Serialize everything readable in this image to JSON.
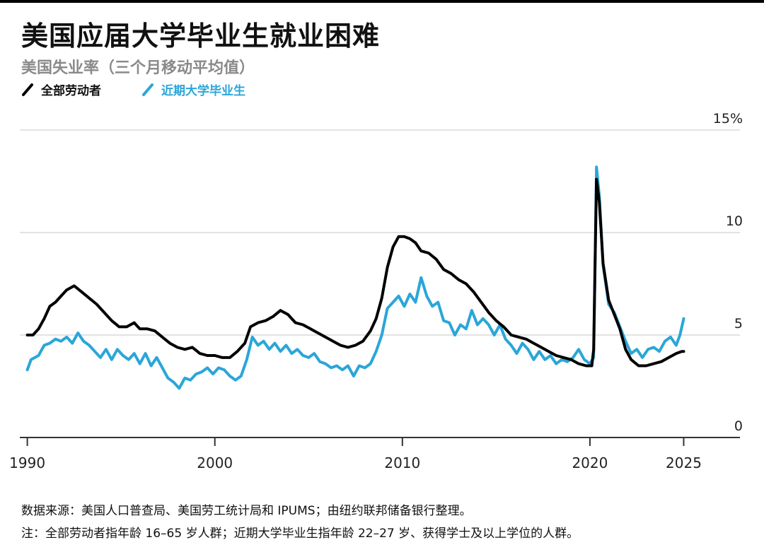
{
  "title": "美国应届大学毕业生就业困难",
  "subtitle": "美国失业率（三个月移动平均值）",
  "legend": {
    "all_workers": "全部劳动者",
    "recent_grads": "近期大学毕业生"
  },
  "footer": {
    "source": "数据来源：美国人口普查局、美国劳工统计局和 IPUMS；由纽约联邦储备银行整理。",
    "note": "注：全部劳动者指年龄 16–65 岁人群；近期大学毕业生指年龄 22–27 岁、获得学士及以上学位的人群。"
  },
  "colors": {
    "all_workers": "#000000",
    "recent_grads": "#2aa6d8",
    "grid": "#d9d9d9",
    "axis": "#333333"
  },
  "chart_data": {
    "type": "line",
    "title": "美国应届大学毕业生就业困难",
    "subtitle": "美国失业率（三个月移动平均值）",
    "xlabel": "",
    "ylabel": "",
    "xlim": [
      1989.6,
      2028.0
    ],
    "ylim": [
      0,
      15
    ],
    "y_ticks": [
      0,
      5,
      10,
      15
    ],
    "y_tick_labels": [
      "0",
      "5",
      "10",
      "15%"
    ],
    "x_ticks": [
      1990,
      2000,
      2010,
      2020,
      2025
    ],
    "x_tick_labels": [
      "1990",
      "2000",
      "2010",
      "2020",
      "2025"
    ],
    "grid": true,
    "legend_position": "top-left",
    "series": [
      {
        "name": "全部劳动者",
        "color": "#000000",
        "points": [
          [
            1990.0,
            5.0
          ],
          [
            1990.3,
            5.0
          ],
          [
            1990.6,
            5.3
          ],
          [
            1990.9,
            5.8
          ],
          [
            1991.2,
            6.4
          ],
          [
            1991.5,
            6.6
          ],
          [
            1991.8,
            6.9
          ],
          [
            1992.1,
            7.2
          ],
          [
            1992.5,
            7.4
          ],
          [
            1992.9,
            7.1
          ],
          [
            1993.3,
            6.8
          ],
          [
            1993.7,
            6.5
          ],
          [
            1994.1,
            6.1
          ],
          [
            1994.5,
            5.7
          ],
          [
            1994.9,
            5.4
          ],
          [
            1995.3,
            5.4
          ],
          [
            1995.7,
            5.6
          ],
          [
            1996.0,
            5.3
          ],
          [
            1996.4,
            5.3
          ],
          [
            1996.8,
            5.2
          ],
          [
            1997.2,
            4.9
          ],
          [
            1997.6,
            4.6
          ],
          [
            1998.0,
            4.4
          ],
          [
            1998.4,
            4.3
          ],
          [
            1998.8,
            4.4
          ],
          [
            1999.2,
            4.1
          ],
          [
            1999.6,
            4.0
          ],
          [
            2000.0,
            4.0
          ],
          [
            2000.4,
            3.9
          ],
          [
            2000.8,
            3.9
          ],
          [
            2001.2,
            4.2
          ],
          [
            2001.6,
            4.6
          ],
          [
            2001.9,
            5.4
          ],
          [
            2002.3,
            5.6
          ],
          [
            2002.7,
            5.7
          ],
          [
            2003.1,
            5.9
          ],
          [
            2003.5,
            6.2
          ],
          [
            2003.9,
            6.0
          ],
          [
            2004.3,
            5.6
          ],
          [
            2004.7,
            5.5
          ],
          [
            2005.1,
            5.3
          ],
          [
            2005.5,
            5.1
          ],
          [
            2005.9,
            4.9
          ],
          [
            2006.3,
            4.7
          ],
          [
            2006.7,
            4.5
          ],
          [
            2007.1,
            4.4
          ],
          [
            2007.5,
            4.5
          ],
          [
            2007.9,
            4.7
          ],
          [
            2008.3,
            5.2
          ],
          [
            2008.6,
            5.8
          ],
          [
            2008.9,
            6.8
          ],
          [
            2009.2,
            8.3
          ],
          [
            2009.5,
            9.3
          ],
          [
            2009.8,
            9.8
          ],
          [
            2010.1,
            9.8
          ],
          [
            2010.4,
            9.7
          ],
          [
            2010.7,
            9.5
          ],
          [
            2011.0,
            9.1
          ],
          [
            2011.4,
            9.0
          ],
          [
            2011.8,
            8.7
          ],
          [
            2012.2,
            8.2
          ],
          [
            2012.6,
            8.0
          ],
          [
            2013.0,
            7.7
          ],
          [
            2013.4,
            7.5
          ],
          [
            2013.8,
            7.1
          ],
          [
            2014.2,
            6.6
          ],
          [
            2014.6,
            6.1
          ],
          [
            2015.0,
            5.7
          ],
          [
            2015.4,
            5.4
          ],
          [
            2015.8,
            5.0
          ],
          [
            2016.2,
            4.9
          ],
          [
            2016.6,
            4.8
          ],
          [
            2017.0,
            4.6
          ],
          [
            2017.4,
            4.4
          ],
          [
            2017.8,
            4.2
          ],
          [
            2018.2,
            4.0
          ],
          [
            2018.6,
            3.9
          ],
          [
            2019.0,
            3.8
          ],
          [
            2019.4,
            3.6
          ],
          [
            2019.8,
            3.5
          ],
          [
            2020.1,
            3.5
          ],
          [
            2020.2,
            4.3
          ],
          [
            2020.35,
            12.6
          ],
          [
            2020.5,
            11.5
          ],
          [
            2020.7,
            8.5
          ],
          [
            2021.0,
            6.7
          ],
          [
            2021.3,
            6.0
          ],
          [
            2021.6,
            5.3
          ],
          [
            2021.9,
            4.3
          ],
          [
            2022.2,
            3.8
          ],
          [
            2022.6,
            3.5
          ],
          [
            2023.0,
            3.5
          ],
          [
            2023.4,
            3.6
          ],
          [
            2023.8,
            3.7
          ],
          [
            2024.2,
            3.9
          ],
          [
            2024.6,
            4.1
          ],
          [
            2024.9,
            4.2
          ],
          [
            2025.0,
            4.2
          ]
        ]
      },
      {
        "name": "近期大学毕业生",
        "color": "#2aa6d8",
        "points": [
          [
            1990.0,
            3.3
          ],
          [
            1990.2,
            3.8
          ],
          [
            1990.4,
            3.9
          ],
          [
            1990.6,
            4.0
          ],
          [
            1990.9,
            4.5
          ],
          [
            1991.2,
            4.6
          ],
          [
            1991.5,
            4.8
          ],
          [
            1991.8,
            4.7
          ],
          [
            1992.1,
            4.9
          ],
          [
            1992.4,
            4.6
          ],
          [
            1992.7,
            5.1
          ],
          [
            1993.0,
            4.7
          ],
          [
            1993.3,
            4.5
          ],
          [
            1993.6,
            4.2
          ],
          [
            1993.9,
            3.9
          ],
          [
            1994.2,
            4.3
          ],
          [
            1994.5,
            3.8
          ],
          [
            1994.8,
            4.3
          ],
          [
            1995.1,
            4.0
          ],
          [
            1995.4,
            3.8
          ],
          [
            1995.7,
            4.1
          ],
          [
            1996.0,
            3.6
          ],
          [
            1996.3,
            4.1
          ],
          [
            1996.6,
            3.5
          ],
          [
            1996.9,
            3.9
          ],
          [
            1997.2,
            3.4
          ],
          [
            1997.5,
            2.9
          ],
          [
            1997.8,
            2.7
          ],
          [
            1998.1,
            2.4
          ],
          [
            1998.4,
            2.9
          ],
          [
            1998.7,
            2.8
          ],
          [
            1999.0,
            3.1
          ],
          [
            1999.3,
            3.2
          ],
          [
            1999.6,
            3.4
          ],
          [
            1999.9,
            3.1
          ],
          [
            2000.2,
            3.4
          ],
          [
            2000.5,
            3.3
          ],
          [
            2000.8,
            3.0
          ],
          [
            2001.1,
            2.8
          ],
          [
            2001.4,
            3.0
          ],
          [
            2001.7,
            3.8
          ],
          [
            2002.0,
            4.9
          ],
          [
            2002.3,
            4.5
          ],
          [
            2002.6,
            4.7
          ],
          [
            2002.9,
            4.3
          ],
          [
            2003.2,
            4.6
          ],
          [
            2003.5,
            4.2
          ],
          [
            2003.8,
            4.5
          ],
          [
            2004.1,
            4.1
          ],
          [
            2004.4,
            4.3
          ],
          [
            2004.7,
            4.0
          ],
          [
            2005.0,
            3.9
          ],
          [
            2005.3,
            4.1
          ],
          [
            2005.6,
            3.7
          ],
          [
            2005.9,
            3.6
          ],
          [
            2006.2,
            3.4
          ],
          [
            2006.5,
            3.5
          ],
          [
            2006.8,
            3.3
          ],
          [
            2007.1,
            3.5
          ],
          [
            2007.4,
            3.0
          ],
          [
            2007.7,
            3.5
          ],
          [
            2008.0,
            3.4
          ],
          [
            2008.3,
            3.6
          ],
          [
            2008.6,
            4.2
          ],
          [
            2008.9,
            5.0
          ],
          [
            2009.2,
            6.3
          ],
          [
            2009.5,
            6.6
          ],
          [
            2009.8,
            6.9
          ],
          [
            2010.1,
            6.4
          ],
          [
            2010.4,
            7.0
          ],
          [
            2010.7,
            6.6
          ],
          [
            2011.0,
            7.8
          ],
          [
            2011.3,
            6.9
          ],
          [
            2011.6,
            6.4
          ],
          [
            2011.9,
            6.6
          ],
          [
            2012.2,
            5.7
          ],
          [
            2012.5,
            5.6
          ],
          [
            2012.8,
            5.0
          ],
          [
            2013.1,
            5.5
          ],
          [
            2013.4,
            5.3
          ],
          [
            2013.7,
            6.2
          ],
          [
            2014.0,
            5.5
          ],
          [
            2014.3,
            5.8
          ],
          [
            2014.6,
            5.5
          ],
          [
            2014.9,
            5.0
          ],
          [
            2015.2,
            5.5
          ],
          [
            2015.5,
            4.8
          ],
          [
            2015.8,
            4.5
          ],
          [
            2016.1,
            4.1
          ],
          [
            2016.4,
            4.6
          ],
          [
            2016.7,
            4.3
          ],
          [
            2017.0,
            3.8
          ],
          [
            2017.3,
            4.2
          ],
          [
            2017.6,
            3.8
          ],
          [
            2017.9,
            4.0
          ],
          [
            2018.2,
            3.6
          ],
          [
            2018.5,
            3.8
          ],
          [
            2018.8,
            3.7
          ],
          [
            2019.1,
            3.9
          ],
          [
            2019.4,
            4.3
          ],
          [
            2019.7,
            3.8
          ],
          [
            2020.0,
            3.6
          ],
          [
            2020.2,
            3.9
          ],
          [
            2020.35,
            13.2
          ],
          [
            2020.5,
            11.8
          ],
          [
            2020.7,
            8.4
          ],
          [
            2021.0,
            6.5
          ],
          [
            2021.3,
            6.1
          ],
          [
            2021.6,
            5.4
          ],
          [
            2021.9,
            4.7
          ],
          [
            2022.2,
            4.1
          ],
          [
            2022.5,
            4.3
          ],
          [
            2022.8,
            3.9
          ],
          [
            2023.1,
            4.3
          ],
          [
            2023.4,
            4.4
          ],
          [
            2023.7,
            4.2
          ],
          [
            2024.0,
            4.7
          ],
          [
            2024.3,
            4.9
          ],
          [
            2024.6,
            4.5
          ],
          [
            2024.8,
            5.0
          ],
          [
            2025.0,
            5.8
          ]
        ]
      }
    ]
  }
}
